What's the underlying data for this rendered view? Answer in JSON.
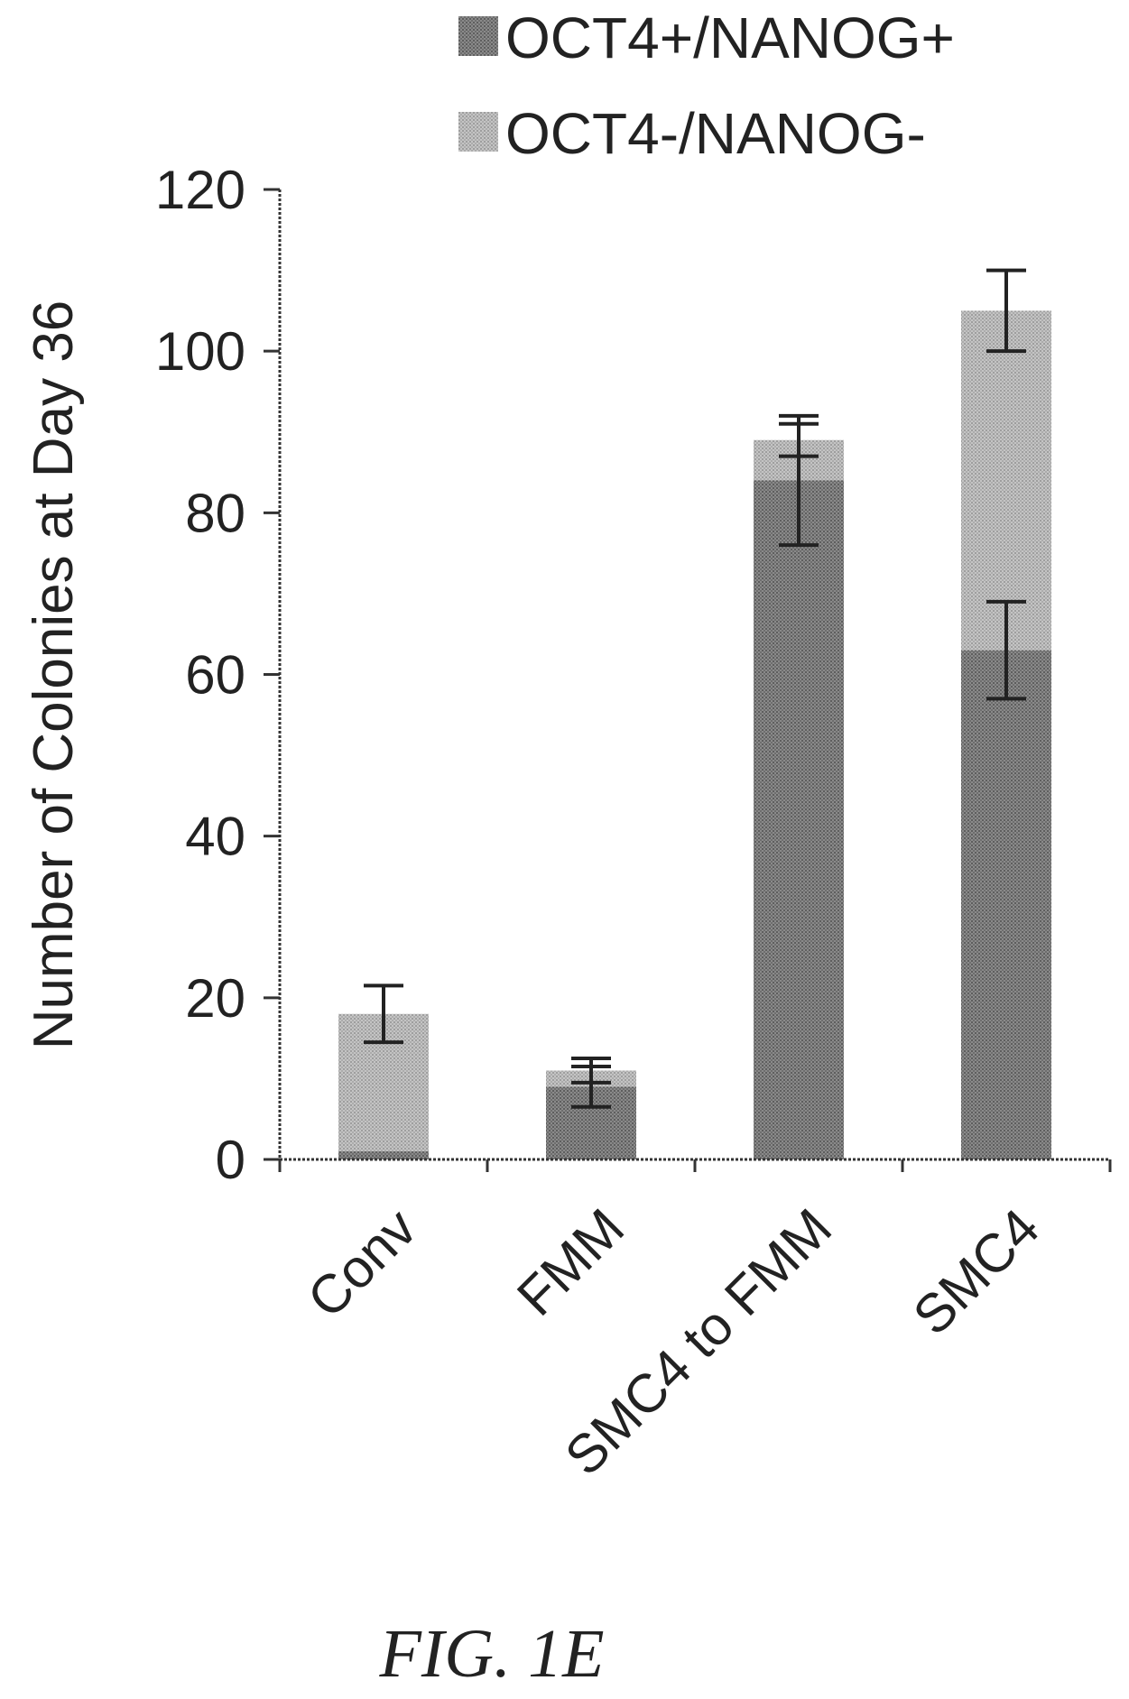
{
  "figure_caption": "FIG. 1E",
  "chart_data": {
    "type": "bar",
    "stacked": true,
    "categories": [
      "Conv",
      "FMM",
      "SMC4 to FMM",
      "SMC4"
    ],
    "series": [
      {
        "name": "OCT4+/NANOG+",
        "color": "#7a7a7a",
        "values": [
          1,
          9,
          84,
          63
        ],
        "error": [
          0,
          2.5,
          8,
          6
        ]
      },
      {
        "name": "OCT4-/NANOG-",
        "color": "#b3b3b3",
        "values": [
          17,
          2,
          5,
          42
        ],
        "error": [
          3.5,
          1.5,
          2,
          5
        ]
      }
    ],
    "ylabel": "Number of Colonies at Day 36",
    "xlabel": "",
    "ylim": [
      0,
      120
    ],
    "yticks": [
      0,
      20,
      40,
      60,
      80,
      100,
      120
    ],
    "grid": false,
    "legend_position": "top"
  }
}
